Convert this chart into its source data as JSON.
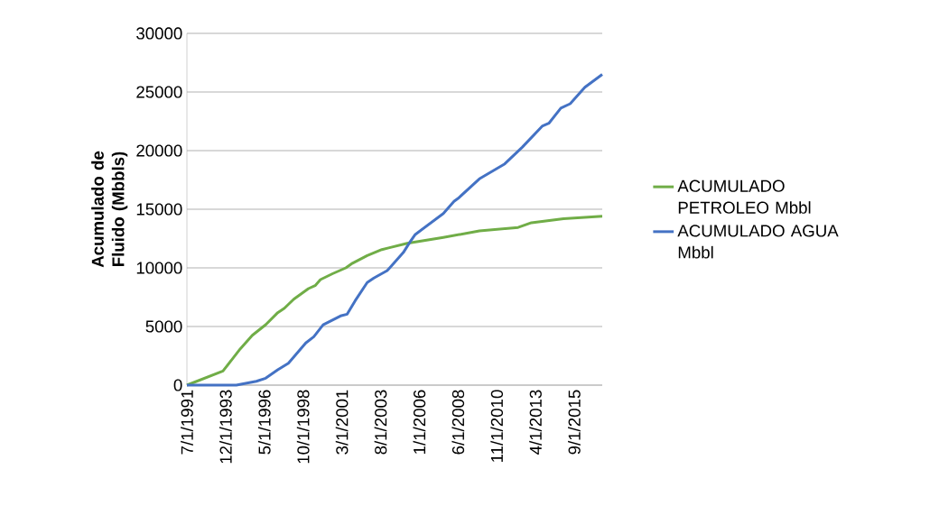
{
  "chart_data": {
    "type": "line",
    "ylabel": "Acumulado de Fluido (Mbbls)",
    "xlim": [
      "1991-07-01",
      "2017-06-01"
    ],
    "ylim": [
      0,
      30000
    ],
    "yticks": [
      0,
      5000,
      10000,
      15000,
      20000,
      25000,
      30000
    ],
    "xticks": [
      {
        "value": "1991-07-01",
        "label": "7/1/1991"
      },
      {
        "value": "1993-12-01",
        "label": "12/1/1993"
      },
      {
        "value": "1996-05-01",
        "label": "5/1/1996"
      },
      {
        "value": "1998-10-01",
        "label": "10/1/1998"
      },
      {
        "value": "2001-03-01",
        "label": "3/1/2001"
      },
      {
        "value": "2003-08-01",
        "label": "8/1/2003"
      },
      {
        "value": "2006-01-01",
        "label": "1/1/2006"
      },
      {
        "value": "2008-06-01",
        "label": "6/1/2008"
      },
      {
        "value": "2010-11-01",
        "label": "11/1/2010"
      },
      {
        "value": "2013-04-01",
        "label": "4/1/2013"
      },
      {
        "value": "2015-09-01",
        "label": "9/1/2015"
      }
    ],
    "grid": "y",
    "legend": "right",
    "marker": "none",
    "line_style": "solid",
    "series": [
      {
        "name": "ACUMULADO PETROLEO Mbbl",
        "color": "#70ad47",
        "x": [
          "1991-07",
          "1993-10",
          "1994-11",
          "1995-08",
          "1996-06",
          "1997-03",
          "1997-08",
          "1998-03",
          "1999-02",
          "1999-07",
          "1999-11",
          "2000-08",
          "2001-06",
          "2001-11",
          "2002-10",
          "2003-09",
          "2004-02",
          "2005-04",
          "2007-07",
          "2009-10",
          "2012-03",
          "2013-01",
          "2015-01",
          "2017-06"
        ],
        "values": [
          0,
          1200,
          3100,
          4250,
          5150,
          6180,
          6560,
          7330,
          8230,
          8490,
          9000,
          9500,
          10000,
          10400,
          11050,
          11560,
          11700,
          12100,
          12600,
          13150,
          13450,
          13850,
          14200,
          14400
        ]
      },
      {
        "name": "ACUMULADO AGUA Mbbl",
        "color": "#4472c4",
        "x": [
          "1991-07",
          "1994-08",
          "1995-11",
          "1996-06",
          "1997-03",
          "1997-11",
          "1998-12",
          "1999-06",
          "2000-01",
          "2001-02",
          "2001-07",
          "2002-01",
          "2002-10",
          "2003-03",
          "2004-01",
          "2004-03",
          "2005-01",
          "2005-06",
          "2005-10",
          "2007-07",
          "2008-03",
          "2008-06",
          "2009-10",
          "2011-05",
          "2012-06",
          "2013-09",
          "2014-02",
          "2014-11",
          "2015-06",
          "2016-05",
          "2017-06"
        ],
        "values": [
          0,
          0,
          330,
          590,
          1300,
          1870,
          3600,
          4130,
          5150,
          5900,
          6050,
          7200,
          8750,
          9130,
          9770,
          10020,
          11300,
          12200,
          12850,
          14640,
          15670,
          15920,
          17590,
          18870,
          20280,
          22080,
          22330,
          23620,
          24000,
          25400,
          26500
        ]
      }
    ]
  }
}
